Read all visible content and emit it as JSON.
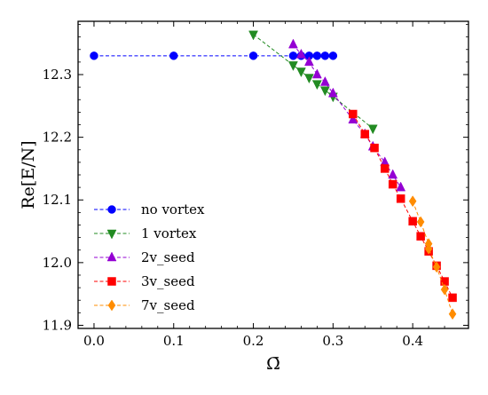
{
  "chart_data": {
    "type": "line",
    "title": "",
    "xlabel": "Ω̄",
    "ylabel": "Re[E/N]",
    "xlim": [
      -0.02,
      0.47
    ],
    "ylim": [
      11.895,
      12.385
    ],
    "xticks": [
      0.0,
      0.1,
      0.2,
      0.3,
      0.4
    ],
    "xtick_labels": [
      "0.0",
      "0.1",
      "0.2",
      "0.3",
      "0.4"
    ],
    "yticks": [
      11.9,
      12.0,
      12.1,
      12.2,
      12.3
    ],
    "ytick_labels": [
      "11.9",
      "12.0",
      "12.1",
      "12.2",
      "12.3"
    ],
    "grid": false,
    "legend_position": "lower-left",
    "series": [
      {
        "name": "no vortex",
        "color": "#0000ff",
        "marker": "circle",
        "x": [
          0.0,
          0.1,
          0.2,
          0.25,
          0.26,
          0.27,
          0.28,
          0.29,
          0.3
        ],
        "y": [
          12.33,
          12.33,
          12.33,
          12.33,
          12.33,
          12.33,
          12.33,
          12.33,
          12.33
        ]
      },
      {
        "name": "1 vortex",
        "color": "#228b22",
        "marker": "triangle-down",
        "x": [
          0.2,
          0.25,
          0.26,
          0.27,
          0.28,
          0.29,
          0.3,
          0.35
        ],
        "y": [
          12.364,
          12.315,
          12.305,
          12.295,
          12.285,
          12.275,
          12.265,
          12.214
        ]
      },
      {
        "name": "2v_seed",
        "color": "#9400d3",
        "marker": "triangle-up",
        "x": [
          0.25,
          0.26,
          0.27,
          0.28,
          0.29,
          0.3,
          0.325,
          0.34,
          0.35,
          0.365,
          0.375,
          0.385
        ],
        "y": [
          12.348,
          12.332,
          12.32,
          12.3,
          12.288,
          12.27,
          12.228,
          12.205,
          12.185,
          12.16,
          12.14,
          12.12
        ]
      },
      {
        "name": "3v_seed",
        "color": "#ff0000",
        "marker": "square",
        "x": [
          0.325,
          0.34,
          0.352,
          0.365,
          0.375,
          0.385,
          0.4,
          0.41,
          0.42,
          0.43,
          0.44,
          0.45
        ],
        "y": [
          12.237,
          12.205,
          12.183,
          12.15,
          12.125,
          12.102,
          12.066,
          12.042,
          12.018,
          11.995,
          11.97,
          11.944
        ]
      },
      {
        "name": "7v_seed",
        "color": "#ff8c00",
        "marker": "diamond",
        "x": [
          0.4,
          0.41,
          0.42,
          0.42,
          0.43,
          0.44,
          0.45
        ],
        "y": [
          12.098,
          12.065,
          12.03,
          12.022,
          11.993,
          11.957,
          11.918
        ]
      }
    ]
  }
}
